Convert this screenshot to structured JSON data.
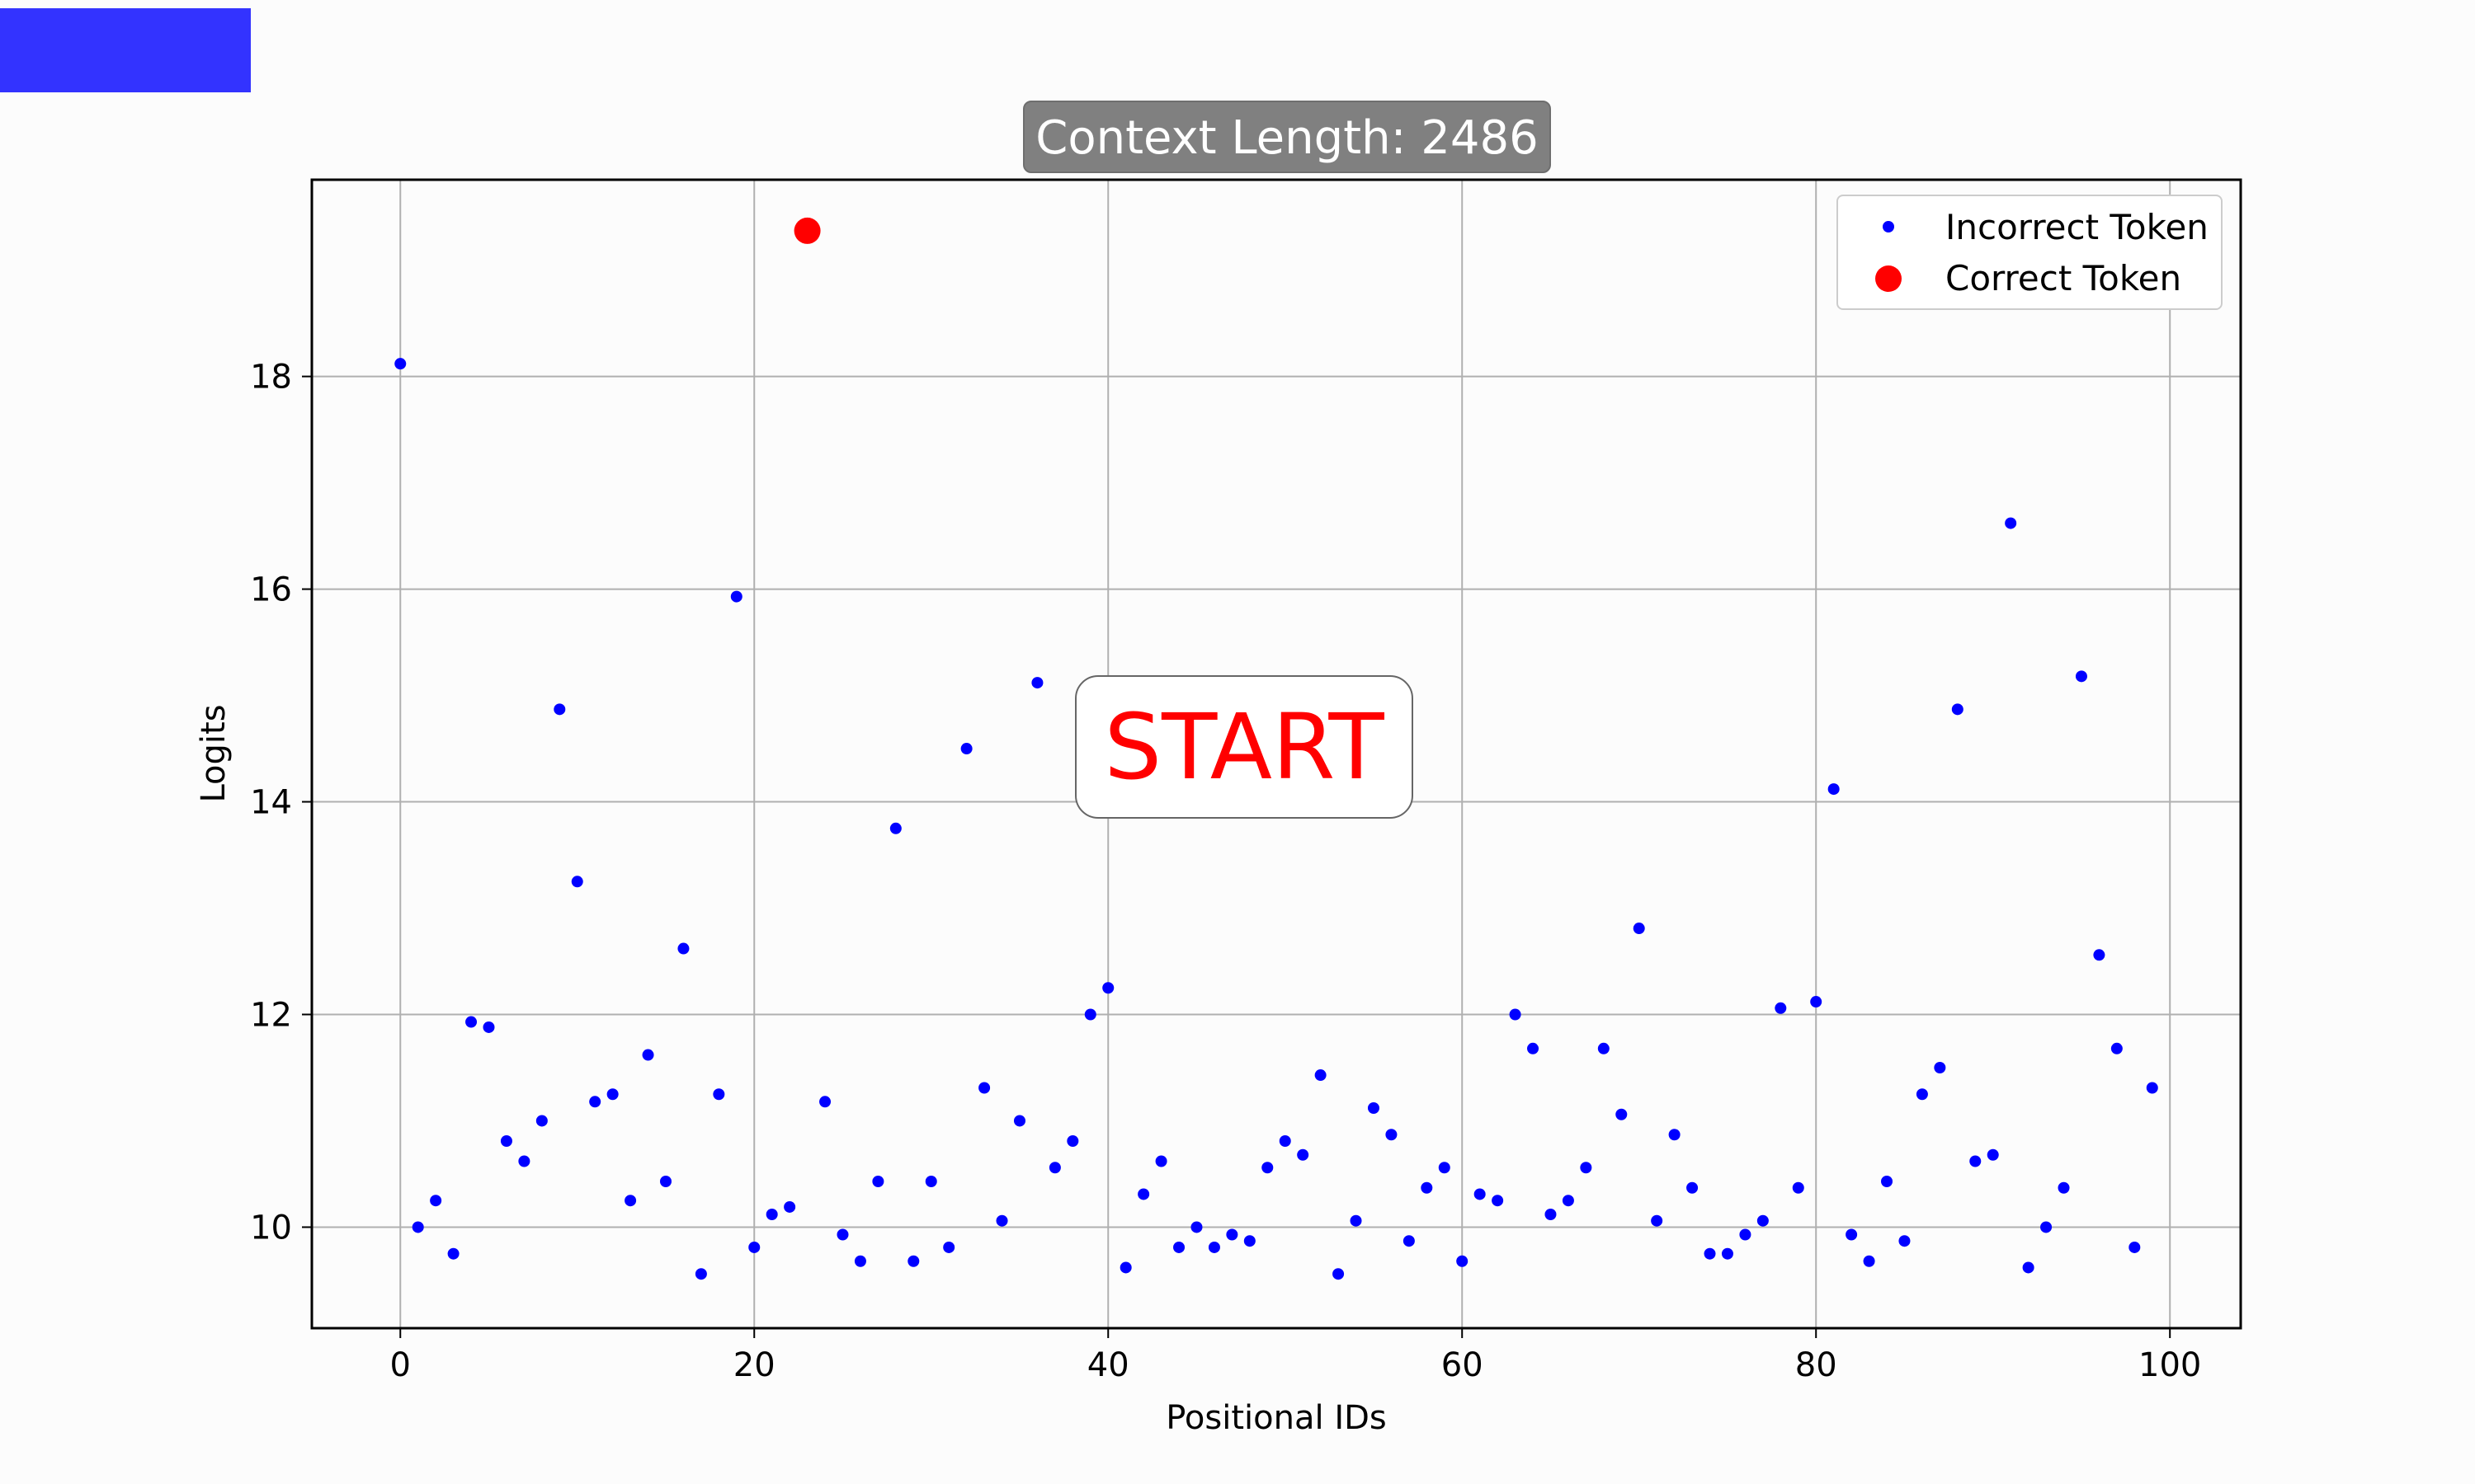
{
  "header": {
    "accent_color": "#3333ff"
  },
  "start_button": {
    "label": "START",
    "color": "#ff0000"
  },
  "chart_data": {
    "type": "scatter",
    "title": "Context Length: 2486",
    "xlabel": "Positional IDs",
    "ylabel": "Logits",
    "xlim": [
      -5,
      104
    ],
    "ylim": [
      9.05,
      19.85
    ],
    "xticks": [
      0,
      20,
      40,
      60,
      80,
      100
    ],
    "yticks": [
      10,
      12,
      14,
      16,
      18
    ],
    "grid": true,
    "legend_placement": "top-right",
    "series": [
      {
        "name": "Incorrect Token",
        "color": "#0000ff",
        "x": [
          0,
          1,
          2,
          3,
          4,
          5,
          6,
          7,
          8,
          9,
          10,
          11,
          12,
          13,
          14,
          15,
          16,
          17,
          18,
          19,
          20,
          21,
          22,
          24,
          25,
          26,
          27,
          28,
          29,
          30,
          31,
          32,
          33,
          34,
          35,
          36,
          37,
          38,
          39,
          40,
          41,
          42,
          43,
          44,
          45,
          46,
          47,
          48,
          49,
          50,
          51,
          52,
          53,
          54,
          55,
          56,
          57,
          58,
          59,
          60,
          61,
          62,
          63,
          64,
          65,
          66,
          67,
          68,
          69,
          70,
          71,
          72,
          73,
          74,
          75,
          76,
          77,
          78,
          79,
          80,
          81,
          82,
          83,
          84,
          85,
          86,
          87,
          88,
          89,
          90,
          91,
          92,
          93,
          94,
          95,
          96,
          97,
          98,
          99
        ],
        "y": [
          18.12,
          10.0,
          10.25,
          9.75,
          11.93,
          11.88,
          10.81,
          10.62,
          11.0,
          14.87,
          13.25,
          11.18,
          11.25,
          10.25,
          11.62,
          10.43,
          12.62,
          9.56,
          11.25,
          15.93,
          9.81,
          10.12,
          10.19,
          11.18,
          9.93,
          9.68,
          10.43,
          13.75,
          9.68,
          10.43,
          9.81,
          14.5,
          11.31,
          10.06,
          11.0,
          15.12,
          10.56,
          10.81,
          12.0,
          12.25,
          9.62,
          10.31,
          10.62,
          9.81,
          10.0,
          9.81,
          9.93,
          9.87,
          10.56,
          10.81,
          10.68,
          11.43,
          9.56,
          10.06,
          11.12,
          10.87,
          9.87,
          10.37,
          10.56,
          9.68,
          10.31,
          10.25,
          12.0,
          11.68,
          10.12,
          10.25,
          10.56,
          11.68,
          11.06,
          12.81,
          10.06,
          10.87,
          10.37,
          9.75,
          9.75,
          9.93,
          10.06,
          12.06,
          10.37,
          12.12,
          14.12,
          9.93,
          9.68,
          10.43,
          9.87,
          11.25,
          11.5,
          14.87,
          10.62,
          10.68,
          16.62,
          9.62,
          10.0,
          10.37,
          15.18,
          12.56,
          11.68,
          9.81,
          11.31
        ]
      },
      {
        "name": "Correct Token",
        "color": "#ff0000",
        "x": [
          23
        ],
        "y": [
          19.37
        ]
      }
    ]
  }
}
